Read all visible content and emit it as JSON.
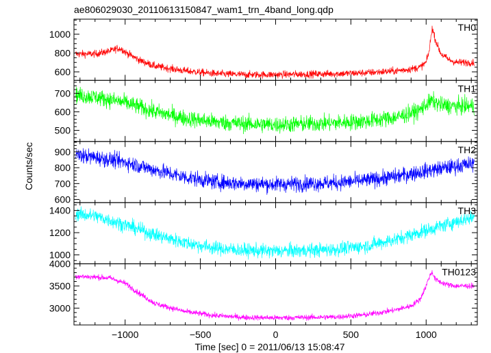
{
  "chart_data": {
    "type": "line",
    "title": "ae806029030_20110613150847_wam1_trn_4band_long.qdp",
    "xlabel": "Time [sec] 0 = 2011/06/13 15:08:47",
    "ylabel": "Counts/sec",
    "xlim": [
      -1340,
      1340
    ],
    "x_ticks": [
      -1000,
      -500,
      0,
      500,
      1000
    ],
    "x_tick_labels": [
      "−1000",
      "−500",
      "0",
      "500",
      "1000"
    ],
    "grid": false,
    "panels": [
      {
        "name": "TH0",
        "color": "#ff0000",
        "ylim": [
          510,
          1160
        ],
        "y_ticks": [
          600,
          800,
          1000
        ],
        "noise": 28,
        "x": [
          -1330,
          -1200,
          -1100,
          -1050,
          -1020,
          -1000,
          -900,
          -800,
          -600,
          -400,
          -200,
          0,
          200,
          400,
          600,
          800,
          900,
          960,
          1000,
          1020,
          1040,
          1060,
          1080,
          1100,
          1150,
          1200,
          1320
        ],
        "y": [
          790,
          790,
          820,
          850,
          840,
          810,
          720,
          660,
          610,
          580,
          570,
          570,
          575,
          580,
          590,
          610,
          630,
          650,
          700,
          820,
          1070,
          950,
          860,
          790,
          730,
          700,
          700
        ]
      },
      {
        "name": "TH1",
        "color": "#00ff00",
        "ylim": [
          440,
          770
        ],
        "y_ticks": [
          500,
          600,
          700
        ],
        "noise": 32,
        "x": [
          -1330,
          -1200,
          -1000,
          -800,
          -600,
          -400,
          -200,
          0,
          200,
          400,
          600,
          800,
          950,
          1000,
          1040,
          1100,
          1200,
          1320
        ],
        "y": [
          690,
          680,
          650,
          600,
          565,
          545,
          535,
          530,
          535,
          540,
          550,
          570,
          605,
          640,
          660,
          635,
          630,
          630
        ]
      },
      {
        "name": "TH2",
        "color": "#0000ff",
        "ylim": [
          580,
          965
        ],
        "y_ticks": [
          600,
          700,
          800,
          900
        ],
        "noise": 35,
        "x": [
          -1330,
          -1200,
          -1000,
          -800,
          -600,
          -400,
          -200,
          0,
          200,
          400,
          600,
          800,
          1000,
          1200,
          1320
        ],
        "y": [
          880,
          865,
          835,
          785,
          740,
          710,
          700,
          695,
          700,
          705,
          720,
          745,
          780,
          810,
          825
        ]
      },
      {
        "name": "TH3",
        "color": "#00ffff",
        "ylim": [
          920,
          1470
        ],
        "y_ticks": [
          1000,
          1200,
          1400
        ],
        "noise": 45,
        "x": [
          -1330,
          -1200,
          -1000,
          -800,
          -600,
          -400,
          -200,
          0,
          200,
          400,
          600,
          800,
          1000,
          1200,
          1320
        ],
        "y": [
          1370,
          1350,
          1270,
          1180,
          1110,
          1060,
          1040,
          1035,
          1040,
          1050,
          1080,
          1140,
          1220,
          1300,
          1340
        ]
      },
      {
        "name": "TH0123",
        "color": "#ff00ff",
        "ylim": [
          2620,
          4000
        ],
        "y_ticks": [
          3000,
          3500,
          4000
        ],
        "noise": 45,
        "x": [
          -1330,
          -1200,
          -1100,
          -1000,
          -900,
          -800,
          -600,
          -400,
          -200,
          0,
          200,
          400,
          600,
          800,
          900,
          960,
          1000,
          1020,
          1040,
          1060,
          1100,
          1150,
          1200,
          1320
        ],
        "y": [
          3720,
          3700,
          3680,
          3560,
          3320,
          3100,
          2920,
          2830,
          2790,
          2780,
          2790,
          2800,
          2850,
          2960,
          3050,
          3200,
          3500,
          3700,
          3820,
          3650,
          3580,
          3520,
          3500,
          3500
        ]
      }
    ]
  }
}
